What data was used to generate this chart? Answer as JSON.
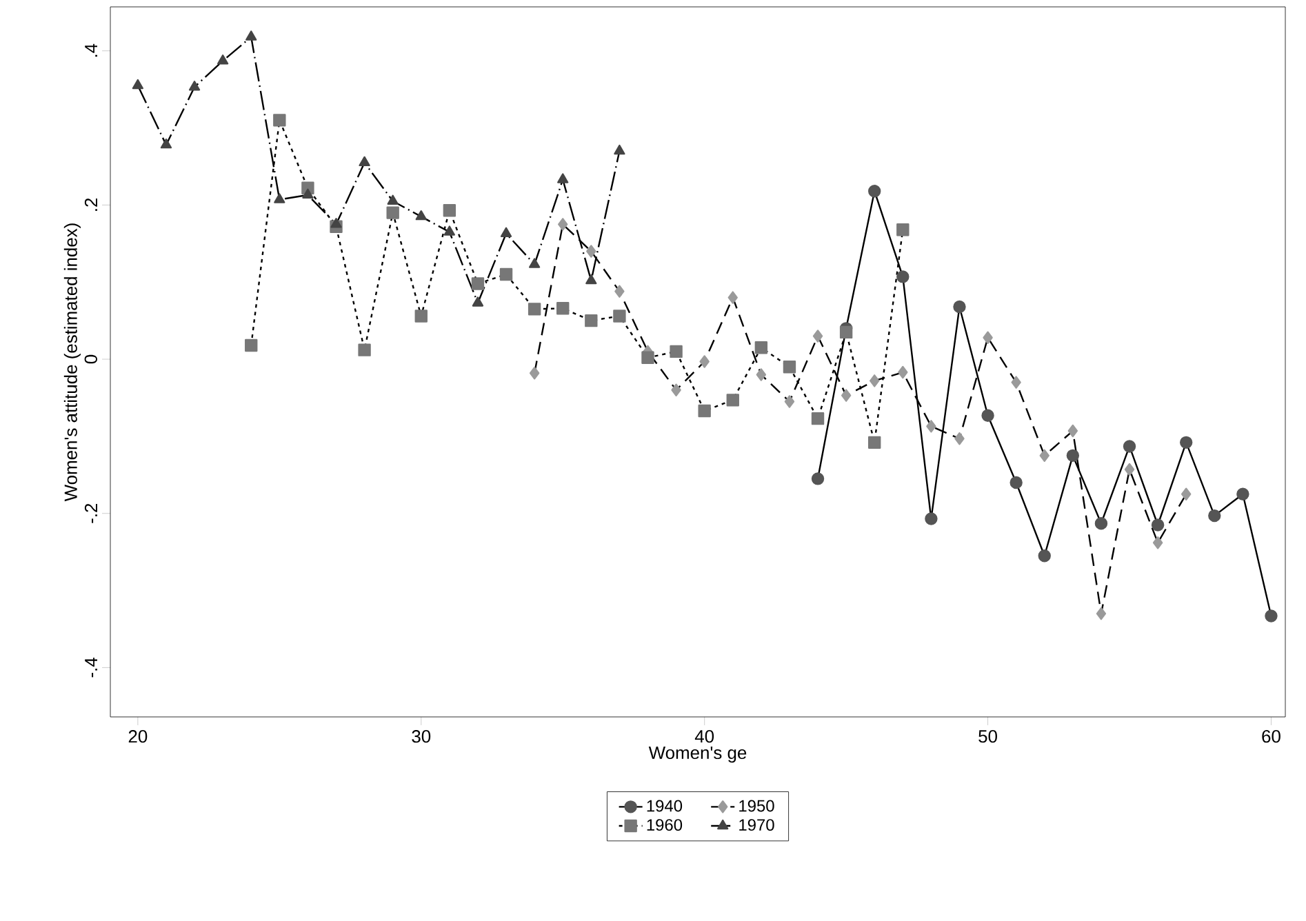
{
  "chart_data": {
    "type": "line",
    "xlabel": "Women's ge",
    "ylabel": "Women's attitude (estimated index)",
    "xlim": [
      19.03,
      60.5
    ],
    "ylim": [
      -0.464,
      0.457
    ],
    "xticks": [
      20,
      30,
      40,
      50,
      60
    ],
    "yticks": [
      {
        "value": -0.4,
        "label": "-.4"
      },
      {
        "value": -0.2,
        "label": "-.2"
      },
      {
        "value": 0,
        "label": "0"
      },
      {
        "value": 0.2,
        "label": ".2"
      },
      {
        "value": 0.4,
        "label": ".4"
      }
    ],
    "grid": false,
    "legend": "bottom",
    "series": [
      {
        "name": "1940",
        "color": "#555555",
        "marker": "circle",
        "line_style": "solid",
        "x": [
          44,
          45,
          46,
          47,
          48,
          49,
          50,
          51,
          52,
          53,
          54,
          55,
          56,
          57,
          58,
          59,
          60
        ],
        "values": [
          -0.155,
          0.04,
          0.218,
          0.107,
          -0.207,
          0.068,
          -0.073,
          -0.16,
          -0.255,
          -0.125,
          -0.213,
          -0.113,
          -0.215,
          -0.108,
          -0.203,
          -0.175,
          -0.333
        ]
      },
      {
        "name": "1950",
        "color": "#9a9a9a",
        "marker": "diamond",
        "line_style": "dashed",
        "x": [
          34,
          35,
          36,
          37,
          38,
          39,
          40,
          41,
          42,
          43,
          44,
          45,
          46,
          47,
          48,
          49,
          50,
          51,
          52,
          53,
          54,
          55,
          56,
          57
        ],
        "values": [
          -0.018,
          0.175,
          0.14,
          0.088,
          0.01,
          -0.04,
          -0.003,
          0.08,
          -0.02,
          -0.055,
          0.03,
          -0.047,
          -0.028,
          -0.017,
          -0.087,
          -0.103,
          0.028,
          -0.03,
          -0.125,
          -0.093,
          -0.33,
          -0.143,
          -0.238,
          -0.175
        ]
      },
      {
        "name": "1960",
        "color": "#777777",
        "marker": "square",
        "line_style": "dotted",
        "x": [
          24,
          25,
          26,
          27,
          28,
          29,
          30,
          31,
          32,
          33,
          34,
          35,
          36,
          37,
          38,
          39,
          40,
          41,
          42,
          43,
          44,
          45,
          46,
          47
        ],
        "values": [
          0.018,
          0.31,
          0.222,
          0.172,
          0.012,
          0.19,
          0.056,
          0.193,
          0.098,
          0.11,
          0.065,
          0.066,
          0.05,
          0.056,
          0.002,
          0.01,
          -0.067,
          -0.053,
          0.015,
          -0.01,
          -0.077,
          0.035,
          -0.108,
          0.168
        ]
      },
      {
        "name": "1970",
        "color": "#444444",
        "marker": "triangle",
        "line_style": "dashdot",
        "x": [
          20,
          21,
          22,
          23,
          24,
          25,
          26,
          27,
          28,
          29,
          30,
          31,
          32,
          33,
          34,
          35,
          36,
          37
        ],
        "values": [
          0.355,
          0.278,
          0.353,
          0.387,
          0.418,
          0.207,
          0.213,
          0.175,
          0.255,
          0.205,
          0.185,
          0.165,
          0.073,
          0.163,
          0.123,
          0.233,
          0.102,
          0.27
        ]
      }
    ]
  }
}
